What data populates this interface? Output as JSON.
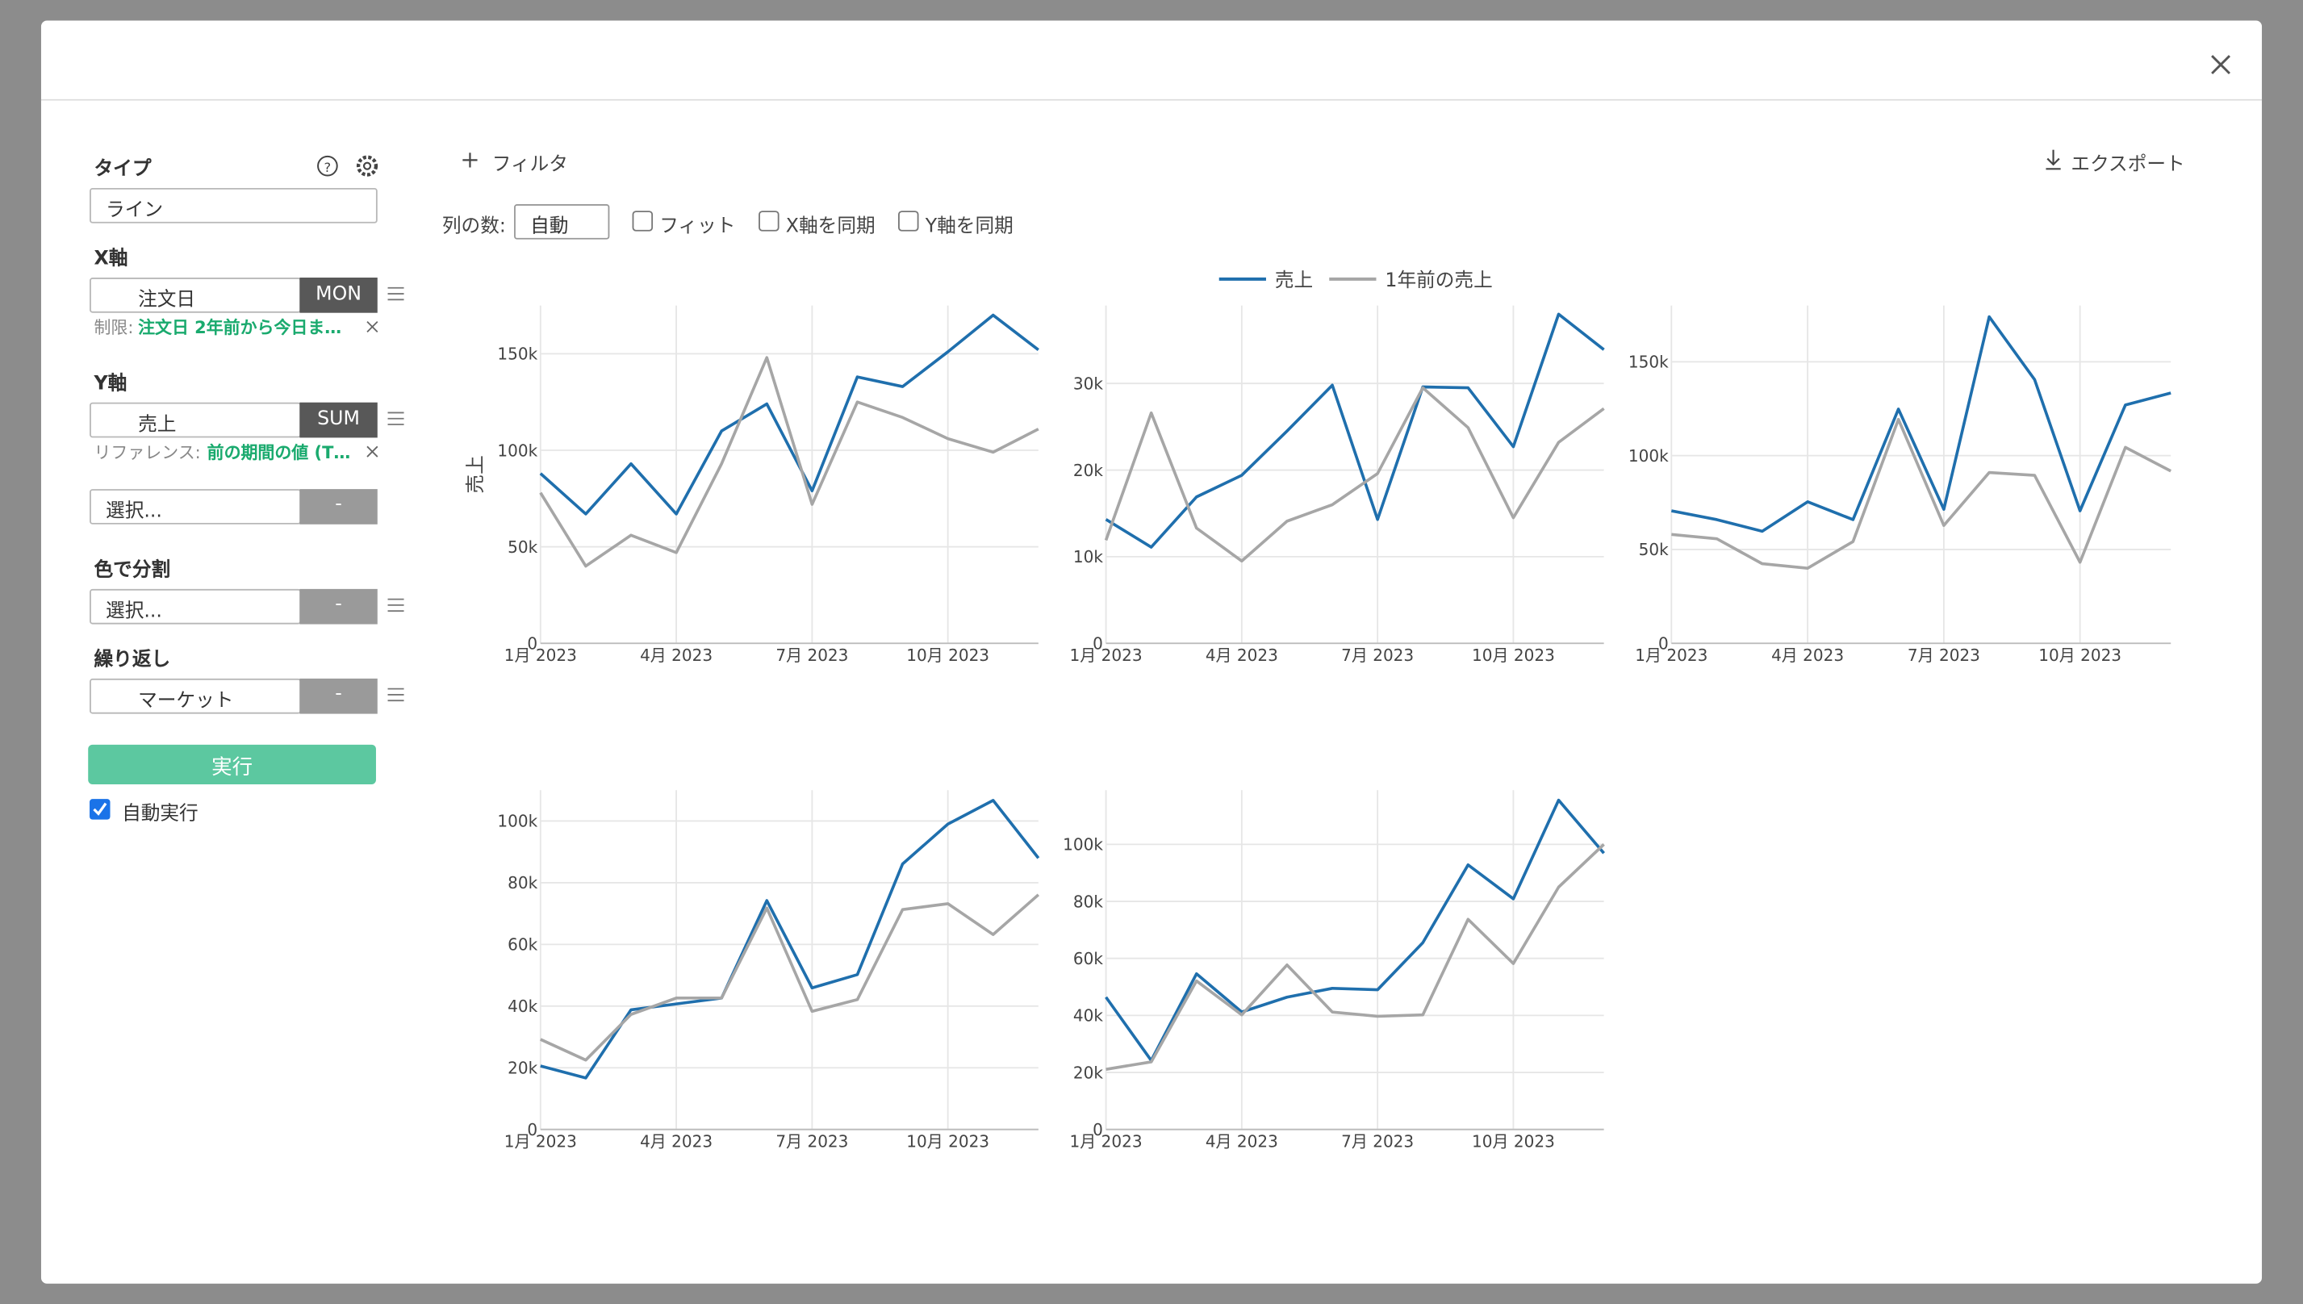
{
  "sidebar": {
    "type_label": "タイプ",
    "type_value": "ライン",
    "x_axis": {
      "label": "X軸",
      "field": "注文日",
      "unit": "MON",
      "limit_label": "制限:",
      "limit_value": "注文日 2年前から今日ま…"
    },
    "y_axis": {
      "label": "Y軸",
      "field": "売上",
      "aggregate": "SUM",
      "reference_label": "リファレンス:",
      "reference_value": "前の期間の値 (T…",
      "extra_field": "選択...",
      "extra_button": "-"
    },
    "color_split": {
      "label": "色で分割",
      "field": "選択...",
      "button": "-"
    },
    "repeat": {
      "label": "繰り返し",
      "field": "マーケット",
      "button": "-"
    },
    "run_button": "実行",
    "auto_run": "自動実行"
  },
  "toolbar": {
    "filter": "フィルタ",
    "export": "エクスポート",
    "columns_label": "列の数:",
    "columns_value": "自動",
    "fit": "フィット",
    "sync_x": "X軸を同期",
    "sync_y": "Y軸を同期"
  },
  "chart_data": [
    {
      "type": "line",
      "ylabel": "売上",
      "categories": [
        "1月 2023",
        null,
        null,
        "4月 2023",
        null,
        null,
        "7月 2023",
        null,
        null,
        "10月 2023",
        null,
        null
      ],
      "series": [
        {
          "name": "売上",
          "color": "#1f6fad",
          "values": [
            88000,
            67000,
            93000,
            67000,
            110000,
            124000,
            79000,
            138000,
            133000,
            151000,
            170000,
            152000
          ]
        },
        {
          "name": "1年前の売上",
          "color": "#a6a6a6",
          "values": [
            78000,
            40000,
            56000,
            47000,
            93000,
            148000,
            72000,
            125000,
            117000,
            106000,
            99000,
            111000
          ]
        }
      ],
      "ylim": [
        0,
        175000
      ],
      "yticks": [
        0,
        {
          "value": 50000,
          "label": "50k"
        },
        {
          "value": 100000,
          "label": "100k"
        },
        {
          "value": 150000,
          "label": "150k"
        }
      ],
      "grid": true
    },
    {
      "type": "line",
      "categories": [
        "1月 2023",
        null,
        null,
        "4月 2023",
        null,
        null,
        "7月 2023",
        null,
        null,
        "10月 2023",
        null,
        null
      ],
      "series": [
        {
          "color": "#1f6fad",
          "values": [
            14300,
            11100,
            16900,
            19400,
            24500,
            29800,
            14300,
            29600,
            29500,
            22700,
            38000,
            33900
          ]
        },
        {
          "color": "#a6a6a6",
          "values": [
            11900,
            26600,
            13300,
            9500,
            14100,
            16000,
            19600,
            29500,
            24900,
            14500,
            23200,
            27100
          ]
        }
      ],
      "ylim": [
        0,
        39000
      ],
      "yticks": [
        0,
        {
          "value": 10000,
          "label": "10k"
        },
        {
          "value": 20000,
          "label": "20k"
        },
        {
          "value": 30000,
          "label": "30k"
        }
      ],
      "grid": true
    },
    {
      "type": "line",
      "categories": [
        "1月 2023",
        null,
        null,
        "4月 2023",
        null,
        null,
        "7月 2023",
        null,
        null,
        "10月 2023",
        null,
        null
      ],
      "series": [
        {
          "color": "#1f6fad",
          "values": [
            70600,
            65900,
            59700,
            75400,
            65900,
            124800,
            71400,
            174000,
            140500,
            70600,
            127000,
            133400
          ]
        },
        {
          "color": "#a6a6a6",
          "values": [
            58000,
            55700,
            42400,
            40000,
            54200,
            119300,
            62800,
            91000,
            89500,
            43200,
            104400,
            91800
          ]
        }
      ],
      "ylim": [
        0,
        180000
      ],
      "yticks": [
        0,
        {
          "value": 50000,
          "label": "50k"
        },
        {
          "value": 100000,
          "label": "100k"
        },
        {
          "value": 150000,
          "label": "150k"
        }
      ],
      "grid": true
    },
    {
      "type": "line",
      "categories": [
        "1月 2023",
        null,
        null,
        "4月 2023",
        null,
        null,
        "7月 2023",
        null,
        null,
        "10月 2023",
        null,
        null
      ],
      "series": [
        {
          "color": "#1f6fad",
          "values": [
            20600,
            16700,
            38800,
            40700,
            42600,
            74200,
            45900,
            50200,
            86100,
            99000,
            106700,
            88000
          ]
        },
        {
          "color": "#a6a6a6",
          "values": [
            29200,
            22500,
            37300,
            42600,
            42600,
            71800,
            38300,
            42100,
            71300,
            73200,
            63200,
            76100
          ]
        }
      ],
      "ylim": [
        0,
        110000
      ],
      "yticks": [
        0,
        {
          "value": 20000,
          "label": "20k"
        },
        {
          "value": 40000,
          "label": "40k"
        },
        {
          "value": 60000,
          "label": "60k"
        },
        {
          "value": 80000,
          "label": "80k"
        },
        {
          "value": 100000,
          "label": "100k"
        }
      ],
      "grid": true
    },
    {
      "type": "line",
      "categories": [
        "1月 2023",
        null,
        null,
        "4月 2023",
        null,
        null,
        "7月 2023",
        null,
        null,
        "10月 2023",
        null,
        null
      ],
      "series": [
        {
          "color": "#1f6fad",
          "values": [
            46400,
            24200,
            54600,
            41200,
            46400,
            49500,
            49000,
            65500,
            92800,
            80900,
            115500,
            96900
          ]
        },
        {
          "color": "#a6a6a6",
          "values": [
            21100,
            23700,
            52100,
            40200,
            57700,
            41200,
            39700,
            40200,
            73700,
            58200,
            85000,
            100000
          ]
        }
      ],
      "ylim": [
        0,
        119000
      ],
      "yticks": [
        0,
        {
          "value": 20000,
          "label": "20k"
        },
        {
          "value": 40000,
          "label": "40k"
        },
        {
          "value": 60000,
          "label": "60k"
        },
        {
          "value": 80000,
          "label": "80k"
        },
        {
          "value": 100000,
          "label": "100k"
        }
      ],
      "grid": true
    }
  ]
}
